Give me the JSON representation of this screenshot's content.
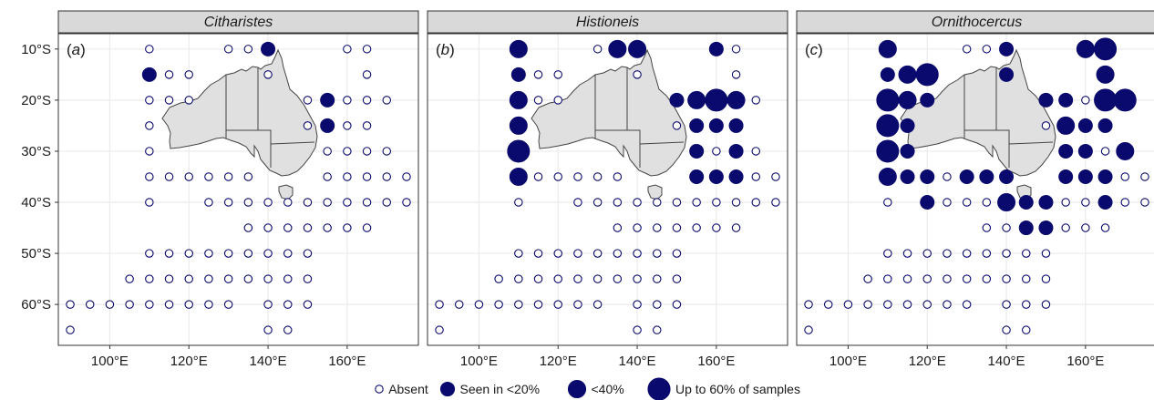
{
  "colors": {
    "point": "#0a0a6e",
    "land": "#e0e0e0",
    "land_stroke": "#444444",
    "strip_bg": "#d9d9d9",
    "grid": "#ebebeb"
  },
  "axes": {
    "lat_labels": [
      "10°S",
      "20°S",
      "30°S",
      "40°S",
      "50°S",
      "60°S"
    ],
    "lat_values": [
      -10,
      -20,
      -30,
      -40,
      -50,
      -60
    ],
    "lon_labels": [
      "100°E",
      "120°E",
      "140°E",
      "160°E"
    ],
    "lon_values": [
      100,
      120,
      140,
      160
    ],
    "xlim": [
      87,
      178
    ],
    "ylim": [
      -68,
      -7
    ]
  },
  "legend": {
    "items": [
      {
        "label": "Absent",
        "level": 0
      },
      {
        "label": "Seen in <20%",
        "level": 1
      },
      {
        "label": "<40%",
        "level": 2
      },
      {
        "label": "Up to 60% of samples",
        "level": 3
      }
    ]
  },
  "chart_data": {
    "type": "scatter",
    "encoding": "bubble map of sampling stations; level 0 = absent (open circle), 1 = seen in <20%, 2 = <40%, 3 = up to 60% of samples",
    "stations": [
      [
        110,
        -10
      ],
      [
        130,
        -10
      ],
      [
        135,
        -10
      ],
      [
        140,
        -10
      ],
      [
        160,
        -10
      ],
      [
        165,
        -10
      ],
      [
        110,
        -15
      ],
      [
        115,
        -15
      ],
      [
        120,
        -15
      ],
      [
        140,
        -15
      ],
      [
        165,
        -15
      ],
      [
        110,
        -20
      ],
      [
        115,
        -20
      ],
      [
        120,
        -20
      ],
      [
        150,
        -20
      ],
      [
        155,
        -20
      ],
      [
        160,
        -20
      ],
      [
        165,
        -20
      ],
      [
        170,
        -20
      ],
      [
        110,
        -25
      ],
      [
        150,
        -25
      ],
      [
        155,
        -25
      ],
      [
        160,
        -25
      ],
      [
        165,
        -25
      ],
      [
        110,
        -30
      ],
      [
        155,
        -30
      ],
      [
        160,
        -30
      ],
      [
        165,
        -30
      ],
      [
        170,
        -30
      ],
      [
        110,
        -35
      ],
      [
        115,
        -35
      ],
      [
        120,
        -35
      ],
      [
        125,
        -35
      ],
      [
        130,
        -35
      ],
      [
        135,
        -35
      ],
      [
        155,
        -35
      ],
      [
        160,
        -35
      ],
      [
        165,
        -35
      ],
      [
        170,
        -35
      ],
      [
        175,
        -35
      ],
      [
        110,
        -40
      ],
      [
        125,
        -40
      ],
      [
        130,
        -40
      ],
      [
        135,
        -40
      ],
      [
        140,
        -40
      ],
      [
        145,
        -40
      ],
      [
        150,
        -40
      ],
      [
        155,
        -40
      ],
      [
        160,
        -40
      ],
      [
        165,
        -40
      ],
      [
        170,
        -40
      ],
      [
        175,
        -40
      ],
      [
        135,
        -45
      ],
      [
        140,
        -45
      ],
      [
        145,
        -45
      ],
      [
        150,
        -45
      ],
      [
        155,
        -45
      ],
      [
        160,
        -45
      ],
      [
        165,
        -45
      ],
      [
        110,
        -50
      ],
      [
        115,
        -50
      ],
      [
        120,
        -50
      ],
      [
        125,
        -50
      ],
      [
        130,
        -50
      ],
      [
        135,
        -50
      ],
      [
        140,
        -50
      ],
      [
        145,
        -50
      ],
      [
        150,
        -50
      ],
      [
        105,
        -55
      ],
      [
        110,
        -55
      ],
      [
        115,
        -55
      ],
      [
        120,
        -55
      ],
      [
        125,
        -55
      ],
      [
        130,
        -55
      ],
      [
        135,
        -55
      ],
      [
        140,
        -55
      ],
      [
        145,
        -55
      ],
      [
        150,
        -55
      ],
      [
        90,
        -60
      ],
      [
        95,
        -60
      ],
      [
        100,
        -60
      ],
      [
        105,
        -60
      ],
      [
        110,
        -60
      ],
      [
        115,
        -60
      ],
      [
        120,
        -60
      ],
      [
        125,
        -60
      ],
      [
        130,
        -60
      ],
      [
        140,
        -60
      ],
      [
        145,
        -60
      ],
      [
        150,
        -60
      ],
      [
        90,
        -65
      ],
      [
        140,
        -65
      ],
      [
        145,
        -65
      ]
    ],
    "panels": [
      {
        "genus": "Citharistes",
        "tag": "(a)",
        "present": [
          [
            140,
            -10,
            1
          ],
          [
            110,
            -15,
            1
          ],
          [
            155,
            -20,
            1
          ],
          [
            155,
            -25,
            1
          ]
        ]
      },
      {
        "genus": "Histioneis",
        "tag": "(b)",
        "present": [
          [
            110,
            -10,
            2
          ],
          [
            135,
            -10,
            2
          ],
          [
            140,
            -10,
            2
          ],
          [
            160,
            -10,
            1
          ],
          [
            110,
            -15,
            1
          ],
          [
            110,
            -20,
            2
          ],
          [
            150,
            -20,
            1
          ],
          [
            155,
            -20,
            2
          ],
          [
            160,
            -20,
            3
          ],
          [
            165,
            -20,
            2
          ],
          [
            110,
            -25,
            2
          ],
          [
            155,
            -25,
            1
          ],
          [
            160,
            -25,
            1
          ],
          [
            165,
            -25,
            1
          ],
          [
            110,
            -30,
            3
          ],
          [
            155,
            -30,
            1
          ],
          [
            165,
            -30,
            1
          ],
          [
            110,
            -35,
            2
          ],
          [
            155,
            -35,
            1
          ],
          [
            160,
            -35,
            1
          ],
          [
            165,
            -35,
            1
          ]
        ]
      },
      {
        "genus": "Ornithocercus",
        "tag": "(c)",
        "present": [
          [
            110,
            -10,
            2
          ],
          [
            140,
            -10,
            1
          ],
          [
            160,
            -10,
            2
          ],
          [
            165,
            -10,
            3
          ],
          [
            110,
            -15,
            1
          ],
          [
            115,
            -15,
            2
          ],
          [
            120,
            -15,
            3
          ],
          [
            140,
            -15,
            1
          ],
          [
            165,
            -15,
            2
          ],
          [
            110,
            -20,
            3
          ],
          [
            115,
            -20,
            2
          ],
          [
            120,
            -20,
            1
          ],
          [
            150,
            -20,
            1
          ],
          [
            155,
            -20,
            1
          ],
          [
            165,
            -20,
            3
          ],
          [
            170,
            -20,
            3
          ],
          [
            110,
            -25,
            3
          ],
          [
            115,
            -25,
            1
          ],
          [
            155,
            -25,
            2
          ],
          [
            160,
            -25,
            1
          ],
          [
            165,
            -25,
            1
          ],
          [
            110,
            -30,
            3
          ],
          [
            115,
            -30,
            1
          ],
          [
            155,
            -30,
            1
          ],
          [
            160,
            -30,
            1
          ],
          [
            170,
            -30,
            2
          ],
          [
            110,
            -35,
            2
          ],
          [
            115,
            -35,
            1
          ],
          [
            120,
            -35,
            1
          ],
          [
            130,
            -35,
            1
          ],
          [
            135,
            -35,
            1
          ],
          [
            140,
            -35,
            1
          ],
          [
            155,
            -35,
            1
          ],
          [
            160,
            -35,
            1
          ],
          [
            165,
            -35,
            1
          ],
          [
            120,
            -40,
            1
          ],
          [
            140,
            -40,
            2
          ],
          [
            145,
            -40,
            1
          ],
          [
            150,
            -40,
            1
          ],
          [
            165,
            -40,
            1
          ],
          [
            145,
            -45,
            1
          ],
          [
            150,
            -45,
            1
          ]
        ]
      }
    ]
  }
}
